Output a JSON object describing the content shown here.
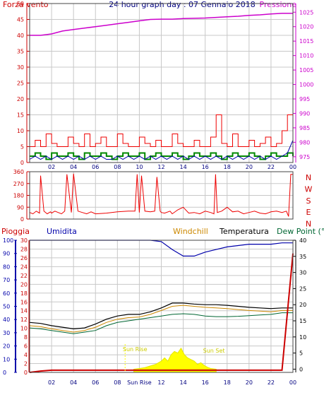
{
  "header": {
    "wind_label": "Forza vento",
    "title": "24 hour graph day : 07 Gennaio 2018",
    "pressure_label": "Pressione"
  },
  "colors": {
    "wind_axis": "#cc0000",
    "pressure": "#cc00cc",
    "grid": "#c8c8c8",
    "wind_gust": "#ee0000",
    "wind_avg": "#008800",
    "wind_mean": "#0000aa",
    "rain": "#cc0000",
    "humidity": "#0000aa",
    "windchill": "#cc8800",
    "temperature": "#000000",
    "dewpoint": "#006633",
    "solar": "#ffff00"
  },
  "chart_data": [
    {
      "type": "line",
      "name": "wind_pressure",
      "x_ticks": [
        "02",
        "04",
        "06",
        "08",
        "10",
        "12",
        "14",
        "16",
        "18",
        "20",
        "22",
        "00"
      ],
      "y_left_ticks": [
        "0",
        "5",
        "10",
        "15",
        "20",
        "25",
        "30",
        "35",
        "40",
        "45",
        "50"
      ],
      "y_left_range": [
        0,
        50
      ],
      "y_right_ticks": [
        "975",
        "980",
        "985",
        "990",
        "995",
        "1000",
        "1005",
        "1010",
        "1015",
        "1020",
        "1025"
      ],
      "y_right_range": [
        973,
        1028
      ],
      "grid": true,
      "pressure_x": [
        0,
        1,
        2,
        3,
        4,
        5,
        6,
        7,
        8,
        9,
        10,
        11,
        12,
        13,
        14,
        15,
        16,
        17,
        18,
        19,
        20,
        21,
        22,
        23,
        24
      ],
      "pressure_values": [
        1017.0,
        1017.0,
        1017.5,
        1018.5,
        1019.0,
        1019.5,
        1020.0,
        1020.5,
        1021.0,
        1021.5,
        1022.0,
        1022.5,
        1022.6,
        1022.6,
        1022.8,
        1022.9,
        1023.0,
        1023.2,
        1023.4,
        1023.6,
        1023.9,
        1024.1,
        1024.4,
        1024.6,
        1024.6
      ],
      "gust_x": [
        0,
        0.5,
        1,
        1.5,
        2,
        2.5,
        3,
        3.5,
        4,
        4.5,
        5,
        5.5,
        6,
        6.5,
        7,
        7.5,
        8,
        8.5,
        9,
        9.5,
        10,
        10.5,
        11,
        11.5,
        12,
        12.5,
        13,
        13.5,
        14,
        14.5,
        15,
        15.5,
        16,
        16.5,
        17,
        17.5,
        18,
        18.5,
        19,
        19.5,
        20,
        20.5,
        21,
        21.5,
        22,
        22.5,
        23,
        23.5,
        24
      ],
      "gust_values": [
        5,
        7,
        5,
        9,
        6,
        5,
        5,
        8,
        6,
        5,
        9,
        5,
        6,
        8,
        5,
        5,
        9,
        6,
        5,
        5,
        8,
        6,
        5,
        7,
        5,
        5,
        9,
        6,
        5,
        5,
        7,
        5,
        5,
        8,
        15,
        6,
        5,
        9,
        5,
        5,
        7,
        5,
        6,
        8,
        5,
        6,
        10,
        15,
        8
      ],
      "avg_values": [
        2,
        3,
        2,
        1,
        3,
        2,
        2,
        3,
        2,
        1,
        3,
        2,
        2,
        3,
        2,
        1,
        2,
        3,
        2,
        2,
        3,
        1,
        2,
        3,
        2,
        2,
        3,
        2,
        1,
        2,
        3,
        2,
        2,
        3,
        2,
        1,
        2,
        3,
        2,
        2,
        3,
        2,
        1,
        2,
        3,
        2,
        2,
        3,
        2
      ],
      "mean_values": [
        1,
        2,
        1,
        2,
        1,
        2,
        1,
        2,
        1,
        2,
        1,
        2,
        1,
        2,
        1,
        1,
        2,
        1,
        2,
        1,
        2,
        1,
        2,
        1,
        2,
        1,
        2,
        1,
        2,
        1,
        2,
        1,
        2,
        1,
        2,
        1,
        2,
        1,
        2,
        1,
        2,
        1,
        2,
        1,
        2,
        1,
        2,
        3,
        7
      ]
    },
    {
      "type": "line",
      "name": "wind_direction",
      "y_left_ticks": [
        "0",
        "90",
        "180",
        "270",
        "360"
      ],
      "y_range": [
        0,
        360
      ],
      "y_right_ticks": [
        "N",
        "W",
        "S",
        "E",
        "N"
      ],
      "grid": true,
      "x": [
        0,
        0.3,
        0.6,
        0.9,
        1.0,
        1.3,
        1.6,
        1.9,
        2.0,
        2.3,
        2.6,
        2.9,
        3.2,
        3.4,
        3.8,
        4.0,
        4.4,
        4.8,
        5.2,
        5.6,
        6,
        7,
        8,
        9,
        9.6,
        9.8,
        10.0,
        10.2,
        10.5,
        11,
        11.4,
        11.6,
        11.9,
        12,
        12.3,
        12.8,
        13,
        13.5,
        14,
        14.5,
        15,
        15.5,
        16,
        16.5,
        16.8,
        16.95,
        17.1,
        17.5,
        18,
        18.5,
        19,
        19.5,
        20,
        20.5,
        21,
        21.5,
        22,
        22.5,
        23,
        23.4,
        23.6,
        23.8,
        24
      ],
      "values": [
        50,
        40,
        60,
        45,
        330,
        60,
        40,
        55,
        45,
        60,
        50,
        40,
        60,
        340,
        50,
        345,
        60,
        50,
        40,
        55,
        40,
        45,
        55,
        60,
        60,
        340,
        50,
        330,
        60,
        55,
        60,
        320,
        60,
        50,
        45,
        60,
        40,
        70,
        90,
        45,
        50,
        40,
        60,
        50,
        40,
        340,
        50,
        60,
        90,
        55,
        60,
        40,
        50,
        60,
        45,
        40,
        55,
        60,
        50,
        60,
        20,
        340,
        340
      ]
    },
    {
      "type": "line",
      "name": "rain_temp_humidity",
      "header_labels": [
        "Pioggia",
        "Umidita",
        "Windchill",
        "Temperatura",
        "Dew Point (°C"
      ],
      "y_rain_ticks": [
        "0",
        "2",
        "4",
        "6",
        "8",
        "10",
        "12",
        "14",
        "16",
        "18",
        "20",
        "22",
        "24",
        "26",
        "28",
        "30"
      ],
      "y_hum_ticks": [
        "0",
        "10",
        "20",
        "30",
        "40",
        "50",
        "60",
        "70",
        "80",
        "90",
        "100"
      ],
      "y_temp_ticks": [
        "0",
        "5",
        "10",
        "15",
        "20",
        "25",
        "30",
        "35",
        "40"
      ],
      "y_rain_range": [
        0,
        30
      ],
      "y_hum_range": [
        0,
        100
      ],
      "y_temp_range": [
        -1,
        40
      ],
      "x_ticks": [
        "02",
        "04",
        "06",
        "08",
        "Sun Rise",
        "12",
        "14",
        "16",
        "18",
        "20",
        "22",
        "00"
      ],
      "annotations": [
        "Sun Rise",
        "Sun Set"
      ],
      "grid": true,
      "x": [
        0,
        1,
        2,
        3,
        4,
        5,
        6,
        7,
        8,
        9,
        10,
        11,
        12,
        13,
        14,
        15,
        16,
        17,
        18,
        19,
        20,
        21,
        22,
        23,
        24
      ],
      "temperature": [
        14.5,
        14.2,
        13.5,
        13.0,
        12.5,
        12.8,
        14.0,
        15.5,
        16.5,
        17.0,
        17.0,
        17.8,
        19.0,
        20.5,
        20.5,
        20.2,
        20.0,
        20.0,
        19.8,
        19.5,
        19.2,
        19.0,
        18.8,
        19.0,
        19.0
      ],
      "windchill": [
        13.5,
        13.2,
        12.5,
        12.0,
        11.5,
        12.0,
        13.0,
        14.5,
        15.5,
        16.0,
        16.2,
        17.0,
        18.2,
        19.5,
        19.8,
        19.5,
        19.2,
        19.0,
        18.8,
        18.5,
        18.2,
        18.0,
        17.8,
        18.2,
        18.2
      ],
      "dewpoint": [
        12.8,
        12.5,
        12.0,
        11.5,
        11.0,
        11.5,
        12.0,
        13.5,
        14.5,
        15.0,
        15.5,
        16.0,
        16.5,
        17.0,
        17.2,
        17.0,
        16.5,
        16.3,
        16.3,
        16.4,
        16.6,
        16.8,
        17.0,
        17.5,
        17.5
      ],
      "humidity": [
        100,
        100,
        100,
        100,
        100,
        100,
        100,
        100,
        100,
        100,
        100,
        100,
        99,
        93,
        88,
        88,
        91,
        93,
        95,
        96,
        97,
        97,
        97,
        98,
        98
      ],
      "rain": [
        0,
        0.3,
        0.5,
        0.5,
        0.5,
        0.5,
        0.5,
        0.5,
        0.5,
        0.5,
        0.5,
        0.5,
        0.5,
        0.5,
        0.5,
        0.5,
        0.5,
        0.5,
        0.5,
        0.5,
        0.5,
        0.5,
        0.5,
        0.5,
        27
      ],
      "solar_x": [
        9.5,
        10,
        10.5,
        11,
        11.5,
        12,
        12.3,
        12.6,
        12.9,
        13.2,
        13.5,
        13.8,
        14.1,
        14.4,
        14.7,
        15,
        15.3,
        15.6,
        15.9,
        16.2,
        16.5,
        17
      ],
      "solar_values": [
        0,
        0.2,
        0.5,
        1.0,
        1.5,
        2.5,
        3.5,
        2.5,
        4.5,
        5.5,
        5.0,
        6.5,
        4.5,
        3.5,
        3.0,
        2.5,
        1.5,
        2.0,
        1.2,
        0.6,
        0.2,
        0
      ]
    }
  ]
}
